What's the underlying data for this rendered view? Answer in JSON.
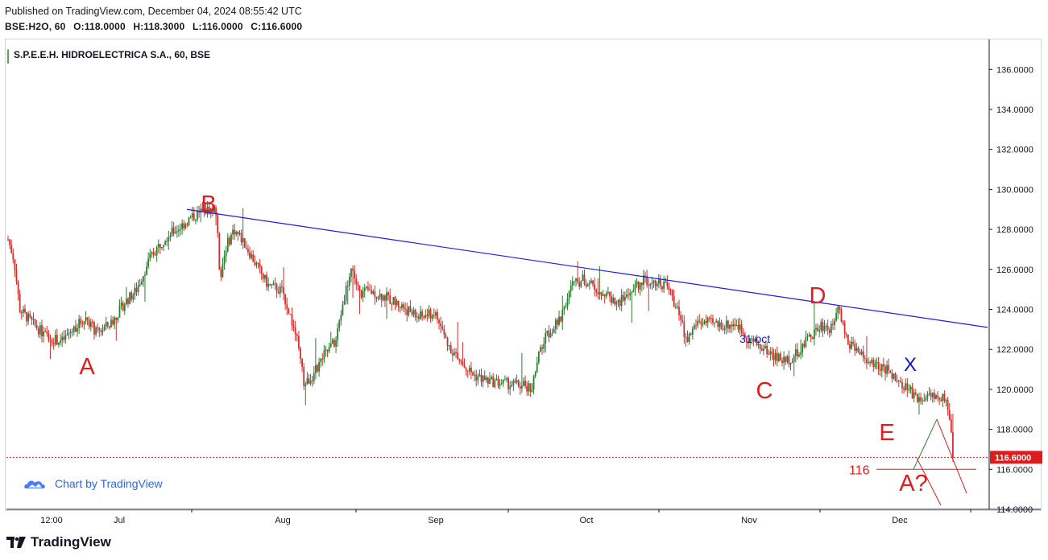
{
  "header": {
    "published": "Published on TradingView.com, December 04, 2024 08:55:42 UTC",
    "symbol": "BSE:H2O, 60",
    "open": "O:118.0000",
    "high": "H:118.3000",
    "low": "L:116.0000",
    "close": "C:116.6000"
  },
  "chart_title": "S.P.E.E.H. HIDROELECTRICA S.A., 60, BSE",
  "watermark": "Chart by TradingView",
  "footer_brand": "TradingView",
  "colors": {
    "up": "#26a69a",
    "down": "#ef5350",
    "bar_up": "#2e7d32",
    "bar_down": "#d32f2f",
    "trend": "#1b1bf0",
    "label_red": "#e31b1b",
    "label_blue": "#1414d4",
    "price_tag": "#e01b1b"
  },
  "chart_data": {
    "type": "candlestick",
    "timeframe": "60",
    "y_axis": {
      "min": 114,
      "max": 137.5,
      "ticks": [
        "136.0000",
        "134.0000",
        "132.0000",
        "130.0000",
        "128.0000",
        "126.0000",
        "124.0000",
        "122.0000",
        "120.0000",
        "118.0000",
        "116.0000",
        "114.0000"
      ]
    },
    "x_axis": {
      "ticks": [
        "12:00",
        "Jul",
        "Aug",
        "Sep",
        "Oct",
        "Nov",
        "Dec"
      ]
    },
    "last_price": "116.6000",
    "price_path": [
      [
        0,
        127.5
      ],
      [
        0.6,
        126.5
      ],
      [
        1.2,
        124.0
      ],
      [
        2.5,
        123.3
      ],
      [
        4,
        122.6
      ],
      [
        5.5,
        122.4
      ],
      [
        7,
        123.2
      ],
      [
        8,
        123.6
      ],
      [
        9,
        122.8
      ],
      [
        10.5,
        123.3
      ],
      [
        12,
        124.4
      ],
      [
        13,
        124.9
      ],
      [
        14.5,
        126.6
      ],
      [
        16,
        127.6
      ],
      [
        17.5,
        128.1
      ],
      [
        19,
        128.7
      ],
      [
        20.5,
        129.0
      ],
      [
        21.2,
        128.9
      ],
      [
        21.6,
        125.6
      ],
      [
        22.2,
        127.1
      ],
      [
        23,
        128.0
      ],
      [
        24,
        127.4
      ],
      [
        25.2,
        126.3
      ],
      [
        26.5,
        125.2
      ],
      [
        28,
        124.9
      ],
      [
        29.4,
        122.6
      ],
      [
        30.2,
        120.2
      ],
      [
        31.2,
        120.8
      ],
      [
        32.2,
        121.7
      ],
      [
        33.4,
        122.4
      ],
      [
        34.2,
        124.5
      ],
      [
        35,
        126.1
      ],
      [
        35.8,
        124.8
      ],
      [
        37,
        124.9
      ],
      [
        38.5,
        124.6
      ],
      [
        40,
        124.2
      ],
      [
        41.8,
        123.6
      ],
      [
        43.5,
        123.8
      ],
      [
        44.8,
        122.3
      ],
      [
        46,
        121.4
      ],
      [
        47.5,
        120.7
      ],
      [
        49,
        120.4
      ],
      [
        50.5,
        120.3
      ],
      [
        52,
        120.2
      ],
      [
        53.4,
        120.1
      ],
      [
        54.2,
        121.9
      ],
      [
        55,
        122.8
      ],
      [
        56.2,
        123.4
      ],
      [
        57.4,
        125.2
      ],
      [
        58.6,
        125.5
      ],
      [
        59.8,
        125.1
      ],
      [
        61,
        124.7
      ],
      [
        62.2,
        124.3
      ],
      [
        63.5,
        124.9
      ],
      [
        64.8,
        125.5
      ],
      [
        66,
        125.4
      ],
      [
        67.2,
        125.2
      ],
      [
        68.2,
        124.0
      ],
      [
        69.2,
        122.4
      ],
      [
        70.2,
        123.4
      ],
      [
        71.5,
        123.3
      ],
      [
        73,
        123.2
      ],
      [
        74.2,
        123.3
      ],
      [
        75.3,
        122.6
      ],
      [
        76.5,
        122.2
      ],
      [
        78,
        121.7
      ],
      [
        79.2,
        121.4
      ],
      [
        80.5,
        121.8
      ],
      [
        81.8,
        122.7
      ],
      [
        83,
        123.2
      ],
      [
        83.9,
        123.0
      ],
      [
        84.6,
        124.4
      ],
      [
        85.4,
        122.5
      ],
      [
        86.5,
        121.9
      ],
      [
        87.6,
        121.4
      ],
      [
        88.7,
        121.1
      ],
      [
        89.8,
        120.9
      ],
      [
        90.9,
        120.2
      ],
      [
        92,
        119.9
      ],
      [
        93,
        119.4
      ],
      [
        94,
        119.9
      ],
      [
        95,
        119.3
      ],
      [
        95.5,
        119.7
      ],
      [
        96,
        118.5
      ],
      [
        96.3,
        116.6
      ]
    ],
    "annotations": {
      "wave_labels": [
        {
          "text": "A",
          "date": "late Jun",
          "price": 121.4,
          "color": "red"
        },
        {
          "text": "B",
          "date": "mid Jul",
          "price": 129.2,
          "color": "red"
        },
        {
          "text": "C",
          "date": "early Nov",
          "price": 120.0,
          "color": "red"
        },
        {
          "text": "D",
          "date": "mid Nov",
          "price": 124.6,
          "color": "red"
        },
        {
          "text": "E",
          "date": "late Nov",
          "price": 118.0,
          "color": "red"
        },
        {
          "text": "X",
          "date": "late Nov",
          "price": 121.4,
          "color": "blue"
        },
        {
          "text": "A?",
          "date": "early Dec",
          "price": 115.6,
          "color": "red"
        }
      ],
      "date_note": "31 oct",
      "level_label": "116",
      "level_price": 116.0,
      "trend_line": {
        "from_price": 129.0,
        "to_price": 123.1
      },
      "projection": {
        "start_price": 116.0,
        "peak_price": 118.5,
        "end_price": 114.8
      }
    }
  }
}
